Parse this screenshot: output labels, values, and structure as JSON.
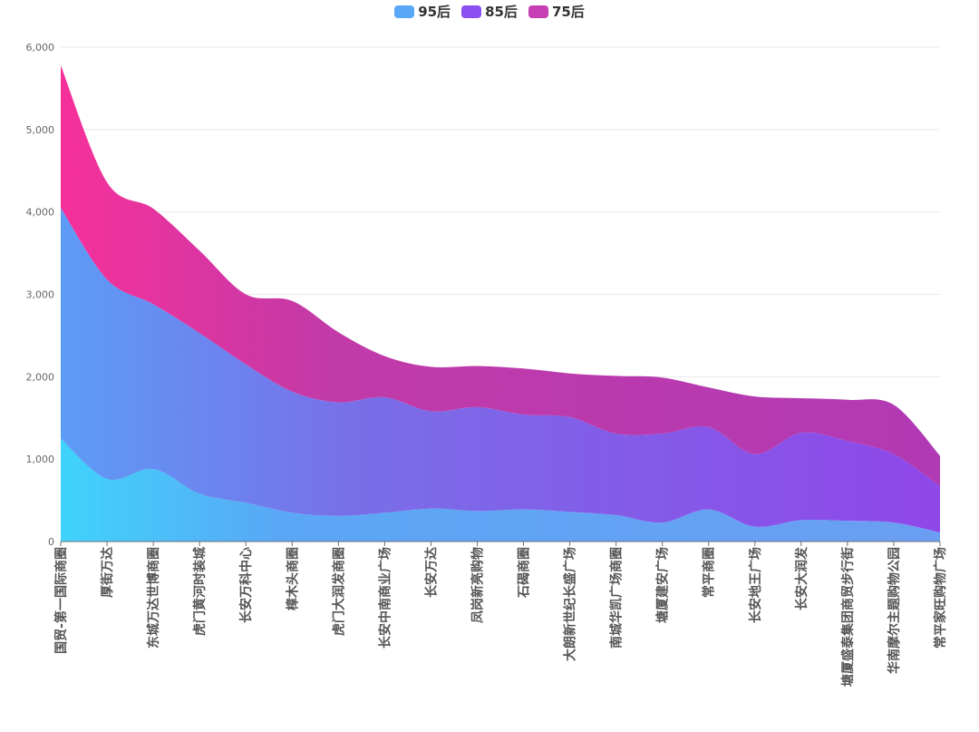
{
  "chart_data": {
    "type": "area",
    "stacked": true,
    "smooth": true,
    "categories": [
      "国贸-第一国际商圈",
      "厚街万达",
      "东城万达世博商圈",
      "虎门黄河时装城",
      "长安万科中心",
      "樟木头商圈",
      "虎门大润发商圈",
      "长安中南商业广场",
      "长安万达",
      "凤岗新亮购物",
      "石碣商圈",
      "大朗新世纪长盛广场",
      "南城华凯广场商圈",
      "塘厦建安广场",
      "常平商圈",
      "长安地王广场",
      "长安大润发",
      "塘厦盛泰集团商贸步行街",
      "华南摩尔主题购物公园",
      "常平家旺购物广场"
    ],
    "series": [
      {
        "name": "95后",
        "color": "#5aa7f5",
        "values": [
          1250,
          760,
          880,
          580,
          470,
          350,
          310,
          350,
          400,
          370,
          390,
          360,
          320,
          230,
          390,
          180,
          260,
          250,
          230,
          110
        ]
      },
      {
        "name": "85后",
        "color": "#8b4ef0",
        "values": [
          2800,
          2420,
          2000,
          1950,
          1680,
          1470,
          1380,
          1400,
          1180,
          1260,
          1150,
          1150,
          990,
          1080,
          1000,
          880,
          1060,
          970,
          830,
          560
        ]
      },
      {
        "name": "75后",
        "color": "#c63fb4",
        "values": [
          1730,
          1180,
          1160,
          1000,
          850,
          1100,
          850,
          500,
          540,
          500,
          560,
          530,
          700,
          680,
          480,
          700,
          420,
          500,
          600,
          370
        ]
      }
    ],
    "ylim": [
      0,
      6000
    ],
    "yticks": [
      "0",
      "1,000",
      "2,000",
      "3,000",
      "4,000",
      "5,000",
      "6,000"
    ],
    "grid": true,
    "legend_position": "top-center"
  }
}
